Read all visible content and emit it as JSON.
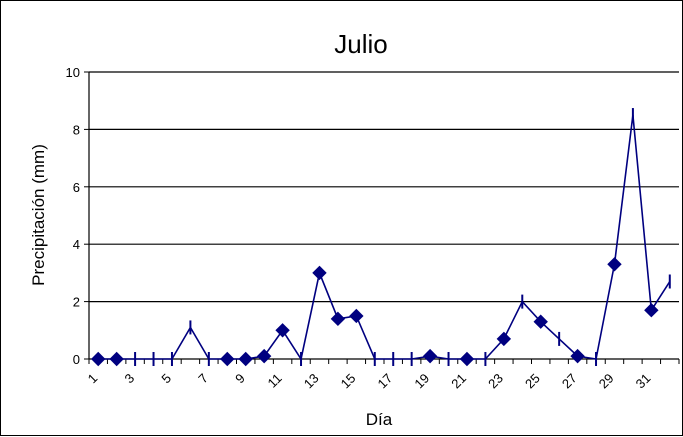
{
  "chart_data": {
    "type": "line",
    "title": "Julio",
    "xlabel": "Día",
    "ylabel": "Precipitación (mm)",
    "ylim": [
      0,
      10
    ],
    "y_ticks": [
      "0",
      "2",
      "4",
      "6",
      "8",
      "10"
    ],
    "x_tick_labels": [
      "1",
      "3",
      "5",
      "7",
      "9",
      "11",
      "13",
      "15",
      "17",
      "19",
      "21",
      "23",
      "25",
      "27",
      "29",
      "31"
    ],
    "grid": "horizontal",
    "legend": "none",
    "line_color": "#000080",
    "x": [
      1,
      2,
      3,
      4,
      5,
      6,
      7,
      8,
      9,
      10,
      11,
      12,
      13,
      14,
      15,
      16,
      17,
      18,
      19,
      20,
      21,
      22,
      23,
      24,
      25,
      26,
      27,
      28,
      29,
      30,
      31,
      32
    ],
    "values": [
      0,
      0,
      0,
      0,
      0,
      1.1,
      0,
      0,
      0,
      0.1,
      1.0,
      0,
      3.0,
      1.4,
      1.5,
      0,
      0,
      0,
      0.1,
      0,
      0,
      0,
      0.7,
      2.0,
      1.3,
      0.7,
      0.1,
      0,
      3.3,
      8.5,
      1.7,
      2.7
    ],
    "markers": [
      "diamond",
      "diamond",
      "dash",
      "dash",
      "dash",
      "dash",
      "dash",
      "diamond",
      "diamond",
      "diamond",
      "diamond",
      "dash",
      "diamond",
      "diamond",
      "diamond",
      "dash",
      "dash",
      "dash",
      "diamond",
      "dash",
      "diamond",
      "dash",
      "diamond",
      "dash",
      "diamond",
      "dash",
      "diamond",
      "dash",
      "diamond",
      "dash",
      "diamond",
      "dash"
    ]
  }
}
